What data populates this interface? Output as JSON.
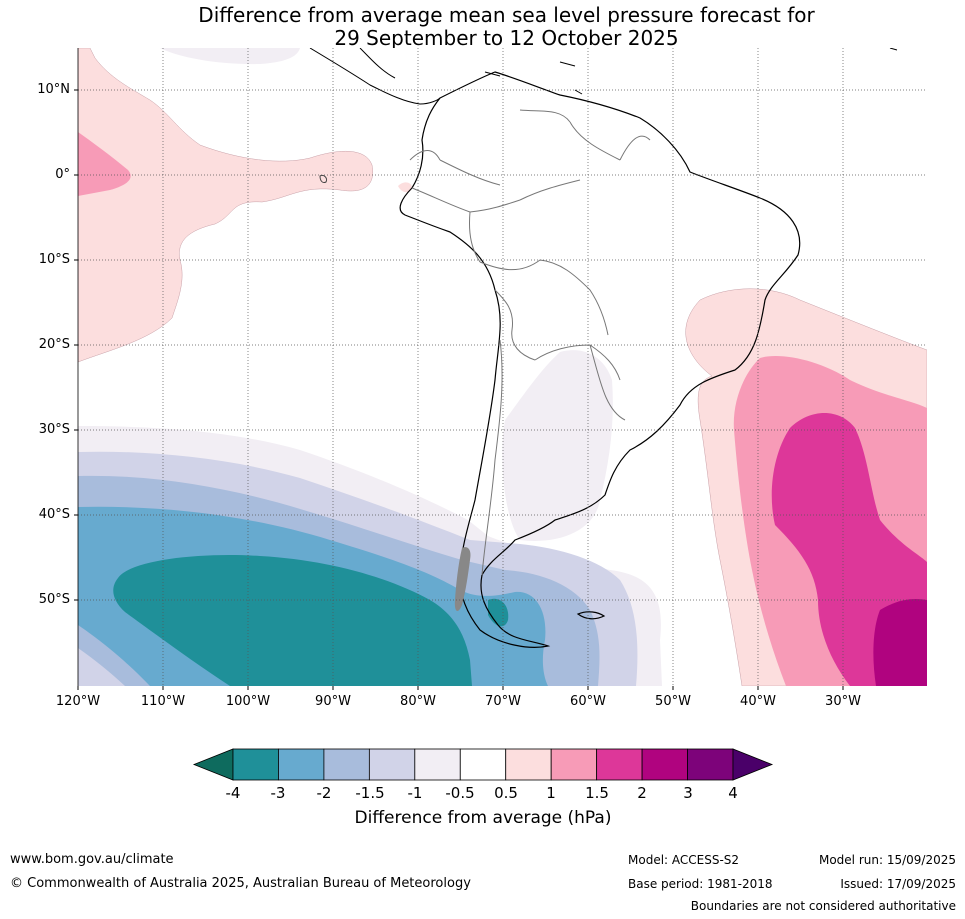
{
  "title_line1": "Difference from average mean sea level pressure forecast for",
  "title_line2": "29 September to 12 October 2025",
  "lat_labels": [
    "10°N",
    "0°",
    "10°S",
    "20°S",
    "30°S",
    "40°S",
    "50°S"
  ],
  "lon_labels": [
    "120°W",
    "110°W",
    "100°W",
    "90°W",
    "80°W",
    "70°W",
    "60°W",
    "50°W",
    "40°W",
    "30°W"
  ],
  "colorbar": {
    "title": "Difference from average (hPa)",
    "tick_labels": [
      "-4",
      "-3",
      "-2",
      "-1.5",
      "-1",
      "-0.5",
      "0.5",
      "1",
      "1.5",
      "2",
      "3",
      "4"
    ],
    "colors": [
      "#0e6b5e",
      "#1f9099",
      "#67aacf",
      "#a8bcdc",
      "#d1d3e8",
      "#f2eef4",
      "#ffffff",
      "#fcdede",
      "#f79bb7",
      "#dd3799",
      "#b0037f",
      "#7d037a",
      "#4a0069"
    ]
  },
  "footer": {
    "website": "www.bom.gov.au/climate",
    "copyright": "© Commonwealth of Australia 2025, Australian Bureau of Meteorology",
    "model": "Model: ACCESS-S2",
    "base_period": "Base period: 1981-2018",
    "model_run": "Model run: 15/09/2025",
    "issued": "Issued: 17/09/2025",
    "boundaries": "Boundaries are not considered authoritative"
  }
}
